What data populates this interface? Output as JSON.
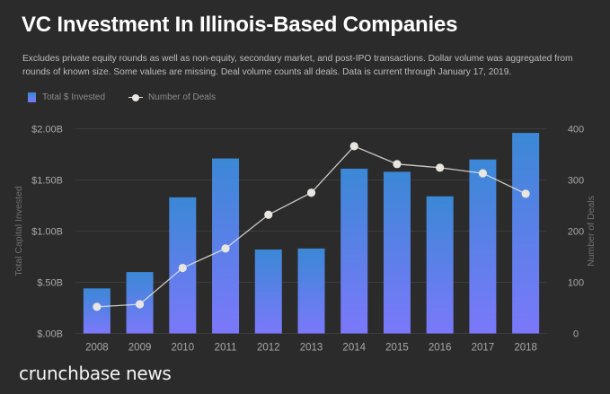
{
  "header": {
    "title": "VC Investment In Illinois-Based Companies",
    "subtitle": "Excludes private equity rounds as well as non-equity, secondary market, and post-IPO transactions. Dollar volume was aggregated from rounds of known size. Some values are missing. Deal volume counts all deals. Data is current through January 17, 2019."
  },
  "legend": {
    "invested_label": "Total $ Invested",
    "deals_label": "Number of Deals"
  },
  "footer": {
    "logo_text": "crunchbase news"
  },
  "colors": {
    "background": "#2b2b2b",
    "bar_top": "#3b88d6",
    "bar_bottom": "#7b78fa",
    "line": "#e9e5e0",
    "grid": "#3d3d3d",
    "tick_text": "#a8a8a8",
    "axis_title": "#6f6f6f"
  },
  "chart_data": {
    "type": "bar",
    "title": "VC Investment In Illinois-Based Companies",
    "categories": [
      "2008",
      "2009",
      "2010",
      "2011",
      "2012",
      "2013",
      "2014",
      "2015",
      "2016",
      "2017",
      "2018"
    ],
    "series": [
      {
        "name": "Total $ Invested",
        "type": "bar",
        "axis": "left",
        "unit": "USD billions",
        "values": [
          0.44,
          0.6,
          1.33,
          1.71,
          0.82,
          0.83,
          1.61,
          1.58,
          1.34,
          1.7,
          1.96
        ]
      },
      {
        "name": "Number of Deals",
        "type": "line",
        "axis": "right",
        "values": [
          52,
          57,
          128,
          166,
          232,
          275,
          366,
          331,
          324,
          313,
          273
        ]
      }
    ],
    "ylabel": "Total Capital Invested",
    "ylabel_right": "Number of Deals",
    "xlabel": "",
    "ylim": [
      0,
      2.0
    ],
    "ylim_right": [
      0,
      400
    ],
    "yticks": [
      {
        "value": 0,
        "label": "$.00B"
      },
      {
        "value": 0.5,
        "label": "$.50B"
      },
      {
        "value": 1.0,
        "label": "$1.00B"
      },
      {
        "value": 1.5,
        "label": "$1.50B"
      },
      {
        "value": 2.0,
        "label": "$2.00B"
      }
    ],
    "yticks_right": [
      {
        "value": 0,
        "label": "0"
      },
      {
        "value": 100,
        "label": "100"
      },
      {
        "value": 200,
        "label": "200"
      },
      {
        "value": 300,
        "label": "300"
      },
      {
        "value": 400,
        "label": "400"
      }
    ],
    "grid": true,
    "legend_position": "top-left"
  }
}
